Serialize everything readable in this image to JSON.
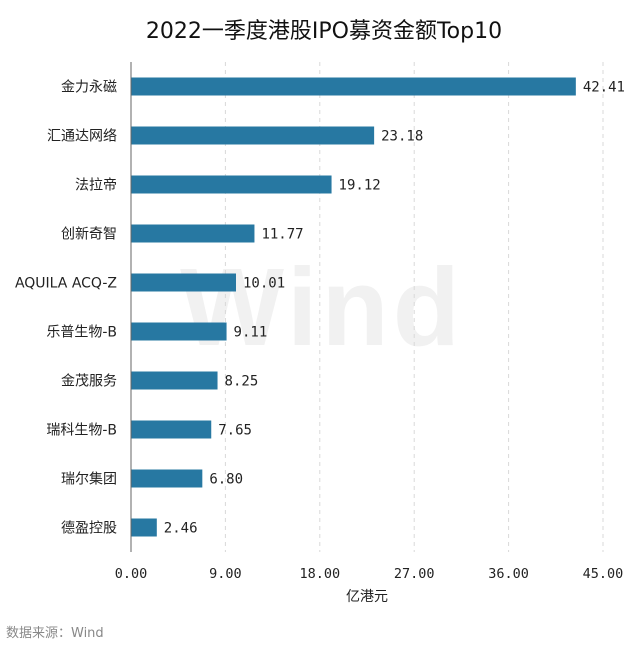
{
  "chart_data": {
    "type": "bar",
    "orientation": "horizontal",
    "title": "2022一季度港股IPO募资金额Top10",
    "xlabel": "亿港元",
    "ylabel": "",
    "categories": [
      "金力永磁",
      "汇通达网络",
      "法拉帝",
      "创新奇智",
      "AQUILA ACQ-Z",
      "乐普生物-B",
      "金茂服务",
      "瑞科生物-B",
      "瑞尔集团",
      "德盈控股"
    ],
    "values": [
      42.41,
      23.18,
      19.12,
      11.77,
      10.01,
      9.11,
      8.25,
      7.65,
      6.8,
      2.46
    ],
    "value_labels": [
      "42.41",
      "23.18",
      "19.12",
      "11.77",
      "10.01",
      "9.11",
      "8.25",
      "7.65",
      "6.80",
      "2.46"
    ],
    "xlim": [
      0,
      45
    ],
    "xticks": [
      0,
      9,
      18,
      27,
      36,
      45
    ],
    "xtick_labels": [
      "0.00",
      "9.00",
      "18.00",
      "27.00",
      "36.00",
      "45.00"
    ],
    "grid": "vertical dashed",
    "bar_color": "#2778a2",
    "source": "数据来源：Wind",
    "watermark": "Wind"
  }
}
